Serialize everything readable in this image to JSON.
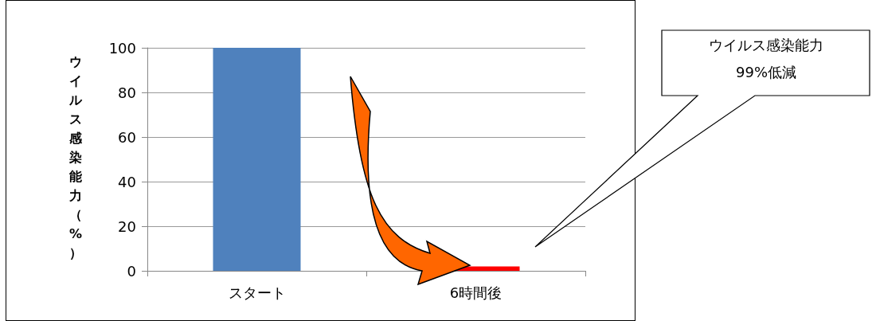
{
  "chart_data": {
    "type": "bar",
    "ylabel": "ウイルス感染能力（%）",
    "categories": [
      "スタート",
      "6時間後"
    ],
    "values": [
      100,
      2
    ],
    "colors": [
      "#4f81bd",
      "#ff0000"
    ],
    "ylim": [
      0,
      100
    ],
    "yticks": [
      0,
      20,
      40,
      60,
      80,
      100
    ],
    "grid": "y",
    "annotations": [
      "ウイルス感染能力\n99%低減"
    ]
  }
}
